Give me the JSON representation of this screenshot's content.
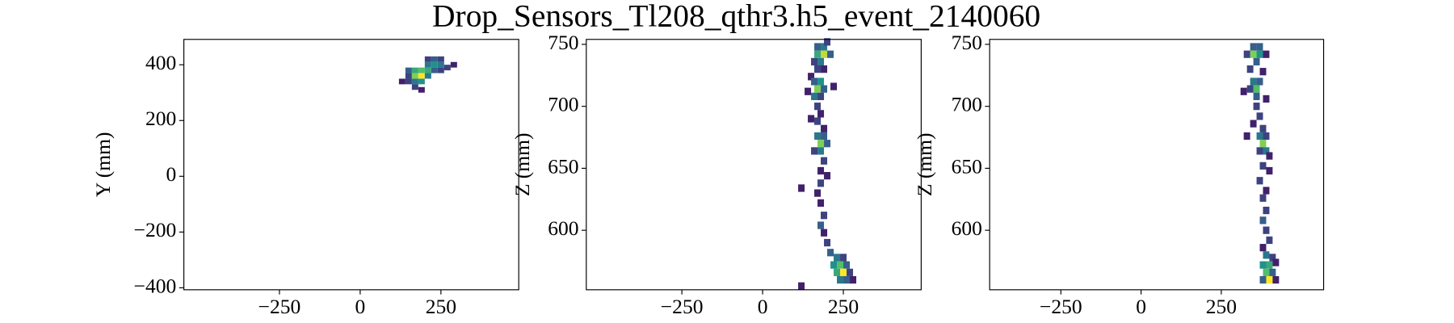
{
  "title": "Drop_Sensors_Tl208_qthr3.h5_event_2140060",
  "chart_data": [
    {
      "type": "heatmap",
      "ylabel": "Y (mm)",
      "colormap": "viridis",
      "xlim": [
        -546,
        491
      ],
      "ylim": [
        -407,
        491
      ],
      "xticks": [
        {
          "value": -250,
          "label": "−250"
        },
        0,
        250
      ],
      "yticks": [
        {
          "value": -400,
          "label": "−400"
        },
        {
          "value": -200,
          "label": "−200"
        },
        0,
        200,
        400
      ],
      "x": [
        130,
        150,
        150,
        170,
        170,
        170,
        190,
        190,
        190,
        210,
        210,
        230,
        230,
        250,
        250,
        270,
        290,
        170,
        190,
        210,
        150,
        230,
        210,
        250
      ],
      "y": [
        340,
        360,
        380,
        340,
        360,
        380,
        360,
        380,
        340,
        380,
        400,
        400,
        420,
        400,
        420,
        390,
        400,
        320,
        310,
        360,
        340,
        380,
        420,
        380
      ],
      "values": [
        1,
        2,
        3,
        4,
        8,
        6,
        10,
        7,
        5,
        6,
        4,
        5,
        3,
        4,
        2,
        2,
        1,
        2,
        1,
        4,
        2,
        3,
        2,
        2
      ]
    },
    {
      "type": "heatmap",
      "ylabel": "Z (mm)",
      "colormap": "viridis",
      "xlim": [
        -546,
        491
      ],
      "ylim": [
        552,
        754
      ],
      "xticks": [
        {
          "value": -250,
          "label": "−250"
        },
        0,
        250
      ],
      "yticks": [
        600,
        650,
        700,
        750
      ],
      "x": [
        170,
        190,
        170,
        190,
        210,
        180,
        160,
        200,
        170,
        190,
        150,
        160,
        180,
        170,
        190,
        160,
        180,
        140,
        220,
        170,
        180,
        170,
        190,
        150,
        170,
        190,
        180,
        200,
        160,
        180,
        190,
        180,
        200,
        180,
        170,
        120,
        180,
        190,
        180,
        190,
        200,
        210,
        230,
        250,
        220,
        240,
        260,
        230,
        250,
        270,
        240,
        260,
        280,
        120
      ],
      "y": [
        748,
        748,
        742,
        742,
        742,
        736,
        736,
        752,
        730,
        730,
        724,
        720,
        720,
        714,
        714,
        708,
        708,
        712,
        716,
        700,
        694,
        688,
        682,
        690,
        676,
        676,
        670,
        670,
        664,
        664,
        656,
        648,
        644,
        638,
        630,
        634,
        622,
        612,
        604,
        598,
        590,
        582,
        578,
        578,
        572,
        572,
        572,
        566,
        566,
        566,
        560,
        560,
        560,
        555
      ],
      "values": [
        3,
        4,
        6,
        9,
        3,
        4,
        2,
        2,
        2,
        1,
        1,
        3,
        5,
        8,
        3,
        4,
        2,
        1,
        1,
        2,
        1,
        2,
        1,
        1,
        4,
        3,
        8,
        3,
        2,
        4,
        2,
        1,
        1,
        2,
        1,
        1,
        1,
        2,
        3,
        1,
        2,
        3,
        4,
        2,
        5,
        7,
        3,
        6,
        10,
        2,
        4,
        3,
        1,
        1
      ]
    },
    {
      "type": "heatmap",
      "ylabel": "Z (mm)",
      "colormap": "viridis",
      "xlim": [
        -472,
        569
      ],
      "ylim": [
        552,
        754
      ],
      "xticks": [
        {
          "value": -250,
          "label": "−250"
        },
        0,
        250
      ],
      "yticks": [
        600,
        650,
        700,
        750
      ],
      "x": [
        350,
        370,
        350,
        370,
        330,
        390,
        360,
        340,
        380,
        350,
        370,
        360,
        340,
        360,
        320,
        390,
        360,
        370,
        350,
        380,
        330,
        370,
        390,
        380,
        390,
        370,
        400,
        380,
        400,
        370,
        390,
        380,
        390,
        380,
        390,
        400,
        380,
        390,
        410,
        380,
        400,
        420,
        390,
        410,
        380,
        400,
        420
      ],
      "y": [
        748,
        748,
        742,
        742,
        742,
        742,
        736,
        730,
        728,
        720,
        720,
        714,
        714,
        708,
        712,
        706,
        700,
        692,
        686,
        682,
        676,
        676,
        676,
        670,
        664,
        664,
        660,
        652,
        648,
        640,
        632,
        626,
        616,
        608,
        600,
        592,
        586,
        580,
        578,
        572,
        572,
        574,
        566,
        566,
        560,
        560,
        560
      ],
      "values": [
        3,
        3,
        8,
        5,
        2,
        1,
        3,
        2,
        1,
        4,
        3,
        7,
        2,
        3,
        1,
        1,
        2,
        2,
        1,
        2,
        1,
        4,
        2,
        8,
        4,
        2,
        1,
        2,
        1,
        2,
        1,
        2,
        2,
        3,
        2,
        2,
        1,
        4,
        2,
        5,
        6,
        1,
        7,
        3,
        3,
        10,
        1
      ]
    }
  ]
}
